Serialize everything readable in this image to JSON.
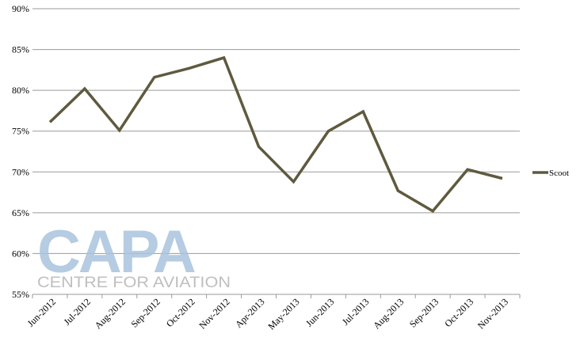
{
  "chart_data": {
    "type": "line",
    "title": "",
    "xlabel": "",
    "ylabel": "",
    "categories": [
      "Jun-2012",
      "Jul-2012",
      "Aug-2012",
      "Sep-2012",
      "Oct-2012",
      "Nov-2012",
      "Apr-2013",
      "May-2013",
      "Jun-2013",
      "Jul-2013",
      "Aug-2013",
      "Sep-2013",
      "Oct-2013",
      "Nov-2013"
    ],
    "series": [
      {
        "name": "Scoot",
        "color": "#5f5a3e",
        "values": [
          76.1,
          80.2,
          75.1,
          81.6,
          82.7,
          84.0,
          73.1,
          68.8,
          75.0,
          77.4,
          67.7,
          65.2,
          70.3,
          69.2
        ]
      }
    ],
    "ylim": [
      55,
      90
    ],
    "yticks": [
      55,
      60,
      65,
      70,
      75,
      80,
      85,
      90
    ],
    "ytick_labels": [
      "55%",
      "60%",
      "65%",
      "70%",
      "75%",
      "80%",
      "85%",
      "90%"
    ],
    "grid": true,
    "legend_position": "right"
  },
  "watermark": {
    "logo_text": "CAPA",
    "tagline": "CENTRE FOR AVIATION",
    "color": "#a9c4de"
  }
}
